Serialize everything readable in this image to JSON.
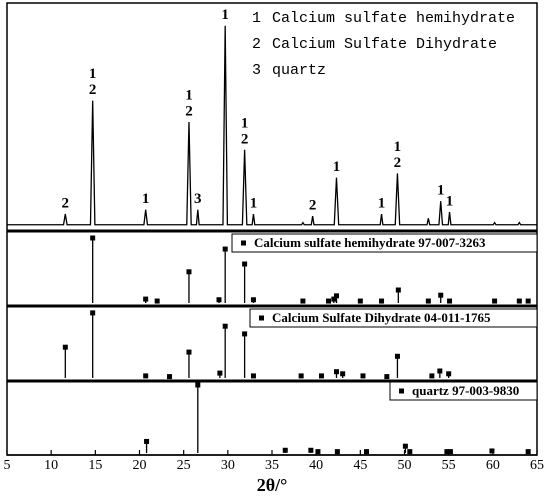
{
  "chart_data": [
    {
      "type": "line",
      "color": "#000000",
      "xlim": [
        5,
        65
      ],
      "ylim": [
        0,
        100
      ],
      "phases": [
        {
          "id": "1",
          "name": "Calcium sulfate hemihydrate"
        },
        {
          "id": "2",
          "name": "Calcium Sulfate Dihydrate"
        },
        {
          "id": "3",
          "name": "quartz"
        }
      ],
      "x": [
        5,
        11.4,
        11.6,
        11.8,
        14.45,
        14.7,
        14.95,
        20.5,
        20.7,
        20.9,
        25.35,
        25.6,
        25.85,
        26.45,
        26.6,
        26.75,
        29.45,
        29.7,
        29.95,
        31.65,
        31.9,
        32.15,
        32.75,
        32.9,
        33.05,
        38.35,
        38.5,
        38.65,
        39.45,
        39.6,
        39.75,
        42.05,
        42.3,
        42.55,
        47.25,
        47.4,
        47.55,
        48.95,
        49.2,
        49.45,
        52.55,
        52.7,
        52.85,
        53.9,
        54.1,
        54.3,
        54.95,
        55.1,
        55.25,
        60.05,
        60.2,
        60.35,
        62.85,
        63,
        63.15,
        65
      ],
      "values": [
        2,
        2,
        7,
        2,
        2,
        60,
        2,
        2,
        9,
        2,
        2,
        50,
        2,
        2,
        9,
        2,
        2,
        95,
        2,
        2,
        37,
        2,
        2,
        7,
        2,
        2,
        3,
        2,
        2,
        6,
        2,
        2,
        24,
        2,
        2,
        7,
        2,
        2,
        26,
        2,
        2,
        5,
        2,
        2,
        13,
        2,
        2,
        8,
        2,
        2,
        3,
        2,
        2,
        3,
        2,
        2
      ],
      "annotations": [
        {
          "x": 11.6,
          "labels": [
            "2"
          ]
        },
        {
          "x": 14.7,
          "labels": [
            "1",
            "2"
          ]
        },
        {
          "x": 20.7,
          "labels": [
            "1"
          ]
        },
        {
          "x": 25.6,
          "labels": [
            "1",
            "2"
          ]
        },
        {
          "x": 26.6,
          "labels": [
            "3"
          ]
        },
        {
          "x": 29.7,
          "labels": [
            "1"
          ]
        },
        {
          "x": 31.9,
          "labels": [
            "1",
            "2"
          ]
        },
        {
          "x": 32.9,
          "labels": [
            "1"
          ]
        },
        {
          "x": 39.6,
          "labels": [
            "2"
          ]
        },
        {
          "x": 42.3,
          "labels": [
            "1"
          ]
        },
        {
          "x": 47.4,
          "labels": [
            "1"
          ]
        },
        {
          "x": 49.2,
          "labels": [
            "1",
            "2"
          ]
        },
        {
          "x": 54.1,
          "labels": [
            "1"
          ]
        },
        {
          "x": 55.1,
          "labels": [
            "1"
          ]
        }
      ]
    },
    {
      "type": "stem",
      "name": "Calcium sulfate hemihydrate 97-007-3263",
      "color": "#000000",
      "xlim": [
        5,
        65
      ],
      "ylim": [
        0,
        100
      ],
      "x": [
        14.7,
        20.7,
        22.0,
        25.6,
        29.0,
        29.7,
        31.9,
        32.9,
        38.5,
        41.4,
        42.0,
        42.3,
        45.0,
        47.4,
        49.3,
        52.7,
        54.1,
        55.1,
        60.2,
        63.0,
        64.0
      ],
      "values": [
        100,
        6,
        3,
        48,
        5,
        83,
        60,
        5,
        3,
        3,
        6,
        11,
        3,
        3,
        20,
        3,
        12,
        3,
        3,
        3,
        3
      ]
    },
    {
      "type": "stem",
      "name": "Calcium Sulfate Dihydrate 04-011-1765",
      "color": "#000000",
      "xlim": [
        5,
        65
      ],
      "ylim": [
        0,
        100
      ],
      "x": [
        11.6,
        14.7,
        20.7,
        23.4,
        25.6,
        29.1,
        29.7,
        31.9,
        32.9,
        38.3,
        40.6,
        42.3,
        43.0,
        45.3,
        48.0,
        49.2,
        53.1,
        54.0,
        55.0
      ],
      "values": [
        44,
        93,
        3,
        2,
        37,
        7,
        74,
        63,
        3,
        3,
        3,
        9,
        6,
        3,
        2,
        31,
        3,
        10,
        6
      ]
    },
    {
      "type": "stem",
      "name": "quartz 97-003-9830",
      "color": "#000000",
      "xlim": [
        5,
        65
      ],
      "ylim": [
        0,
        100
      ],
      "x": [
        20.8,
        26.6,
        36.5,
        39.4,
        40.2,
        42.4,
        45.7,
        50.1,
        50.6,
        54.8,
        55.2,
        59.9,
        64.0
      ],
      "values": [
        17,
        100,
        4,
        4,
        2,
        2,
        2,
        10,
        2,
        2,
        2,
        3,
        2
      ],
      "xticks": [
        5,
        10,
        15,
        20,
        25,
        30,
        35,
        40,
        45,
        50,
        55,
        60,
        65
      ],
      "xlabel": "2θ/°"
    }
  ]
}
